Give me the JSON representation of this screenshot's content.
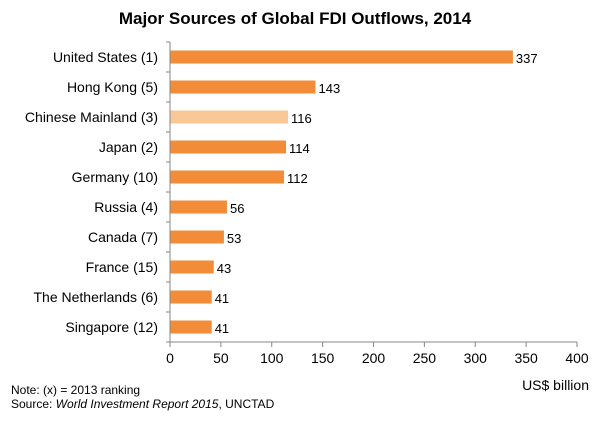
{
  "chart_data": {
    "type": "bar",
    "orientation": "horizontal",
    "title": "Major Sources of Global FDI Outflows, 2014",
    "xlabel": "US$ billion",
    "ylabel": "",
    "categories": [
      "United States (1)",
      "Hong Kong (5)",
      "Chinese Mainland (3)",
      "Japan (2)",
      "Germany (10)",
      "Russia (4)",
      "Canada (7)",
      "France (15)",
      "The Netherlands (6)",
      "Singapore (12)"
    ],
    "values": [
      337,
      143,
      116,
      114,
      112,
      56,
      53,
      43,
      41,
      41
    ],
    "highlight_index": 2,
    "xlim": [
      0,
      400
    ],
    "xticks": [
      0,
      50,
      100,
      150,
      200,
      250,
      300,
      350,
      400
    ],
    "grid": false,
    "legend": "none",
    "colors": {
      "bar": "#f28c38",
      "highlight": "#fac896",
      "axis": "#878787",
      "text": "#000000"
    }
  },
  "footer": {
    "note": "Note: (x) = 2013 ranking",
    "source_prefix": "Source: ",
    "source_title": "World Investment Report 2015",
    "source_suffix": ", UNCTAD"
  }
}
